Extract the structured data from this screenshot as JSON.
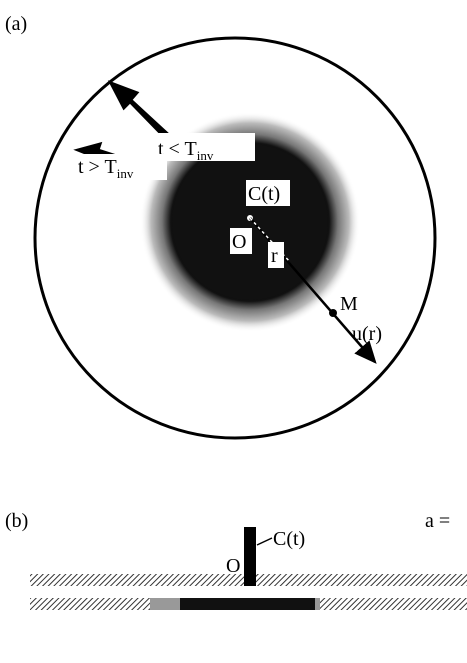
{
  "panel_a": {
    "label": "(a)",
    "arrow_in_label": {
      "main": "t < T",
      "sub": "inv"
    },
    "arrow_out_label": {
      "main": "t > T",
      "sub": "inv"
    },
    "center_label": "C(t)",
    "origin_label": "O",
    "radius_label": "r",
    "point_label": "M",
    "vector_label": "u(r)"
  },
  "panel_b": {
    "label": "(b)",
    "parameter_label": "a =",
    "origin_label": "O",
    "center_label": "C(t)"
  }
}
